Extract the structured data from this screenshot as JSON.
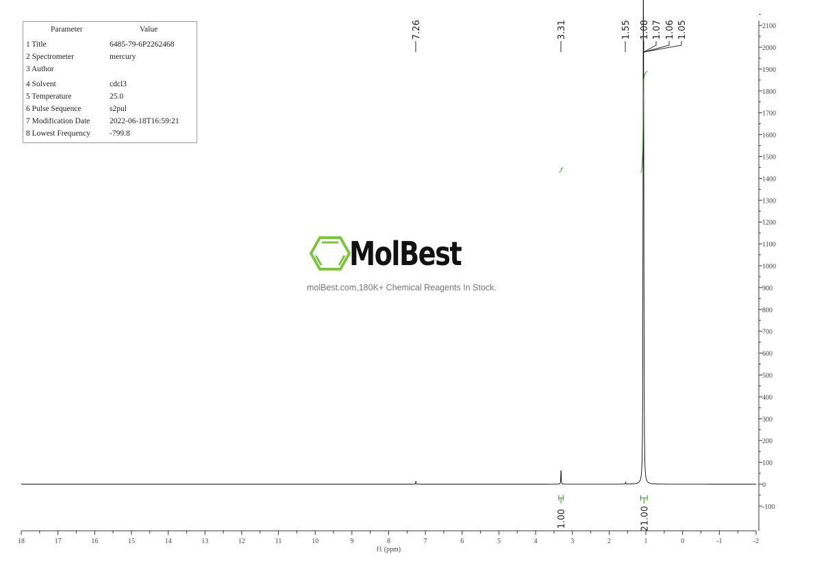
{
  "parameter_table": {
    "headers": [
      "Parameter",
      "Value"
    ],
    "rows": [
      {
        "label": "1 Title",
        "value": "6485-79-6P2262468"
      },
      {
        "label": "2 Spectrometer",
        "value": "mercury"
      },
      {
        "label": "3 Author",
        "value": ""
      },
      {
        "label": "4 Solvent",
        "value": "cdcl3"
      },
      {
        "label": "5 Temperature",
        "value": "25.0"
      },
      {
        "label": "6 Pulse Sequence",
        "value": "s2pul"
      },
      {
        "label": "7 Modification Date",
        "value": "2022-06-18T16:59:21"
      },
      {
        "label": "8 Lowest Frequency",
        "value": "-799.8"
      }
    ]
  },
  "watermark": {
    "brand": "MolBest",
    "tagline": "molBest.com,180K+ Chemical Reagents In Stock.",
    "logo_color": "#7dc242"
  },
  "chart_data": {
    "type": "line",
    "xlabel": "f1 (ppm)",
    "ylabel": "",
    "xlim": [
      18,
      -2
    ],
    "ylim": [
      -200,
      2130
    ],
    "x_ticks": [
      "18",
      "17",
      "16",
      "15",
      "14",
      "13",
      "12",
      "11",
      "10",
      "9",
      "8",
      "7",
      "6",
      "5",
      "4",
      "3",
      "2",
      "1",
      "0",
      "-1",
      "-2"
    ],
    "y_ticks": [
      "-100",
      "0",
      "100",
      "200",
      "300",
      "400",
      "500",
      "600",
      "700",
      "800",
      "900",
      "1000",
      "1100",
      "1200",
      "1300",
      "1400",
      "1500",
      "1600",
      "1700",
      "1800",
      "1900",
      "2000",
      "2100"
    ],
    "peaks": [
      {
        "ppm": 7.26,
        "height": 15
      },
      {
        "ppm": 3.31,
        "height": 72
      },
      {
        "ppm": 1.55,
        "height": 8
      },
      {
        "ppm": 1.08,
        "height": 450
      },
      {
        "ppm": 1.07,
        "height": 1935
      },
      {
        "ppm": 1.06,
        "height": 1300
      },
      {
        "ppm": 1.05,
        "height": 270
      }
    ],
    "peak_labels": [
      "7.26",
      "3.31",
      "1.55",
      "1.08",
      "1.07",
      "1.06",
      "1.05"
    ],
    "integrals": [
      {
        "from": 3.37,
        "to": 3.25,
        "value": "1.00"
      },
      {
        "from": 1.14,
        "to": 0.96,
        "value": "21.00"
      }
    ],
    "line_color": "#000000",
    "integral_color": "#3a8a2a"
  }
}
